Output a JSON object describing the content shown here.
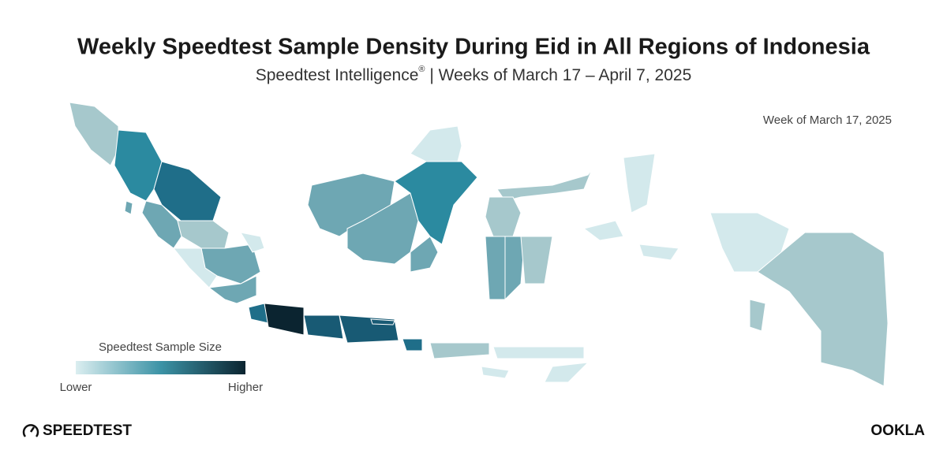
{
  "header": {
    "title": "Weekly Speedtest Sample Density During Eid in All Regions of Indonesia",
    "subtitle_brand": "Speedtest Intelligence",
    "subtitle_mark": "®",
    "subtitle_rest": " | Weeks of March 17 – April 7, 2025"
  },
  "map": {
    "week_label": "Week of March 17, 2025"
  },
  "legend": {
    "title": "Speedtest Sample Size",
    "low": "Lower",
    "high": "Higher"
  },
  "footer": {
    "speedtest_logo": "SPEEDTEST",
    "ookla_logo": "OOKLA"
  }
}
